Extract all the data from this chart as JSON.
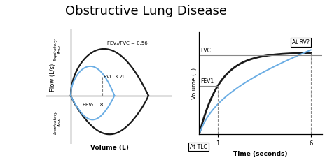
{
  "title": "Obstructive Lung Disease",
  "title_fontsize": 13,
  "background_color": "#ffffff",
  "left_xlabel": "Volume (L)",
  "left_ylabel": "Flow (L/s)",
  "left_expiratory_label": "Expiratory\nflow",
  "left_inspiratory_label": "Inspiratory\nflow",
  "left_annotation_fev1fvc": "FEV₁/FVC = 0.56",
  "left_annotation_fvc": "FVC 3.2L",
  "left_annotation_fev1": "FEV₁ 1.8L",
  "right_xlabel": "Time (seconds)",
  "right_ylabel": "Volume (L)",
  "right_annotation_fvc": "FVC",
  "right_annotation_fev1": "FEV1",
  "right_annotation_at_tlc": "At TLC",
  "right_annotation_at_rv": "At RV?",
  "line_color_black": "#1a1a1a",
  "line_color_blue": "#6aade4"
}
